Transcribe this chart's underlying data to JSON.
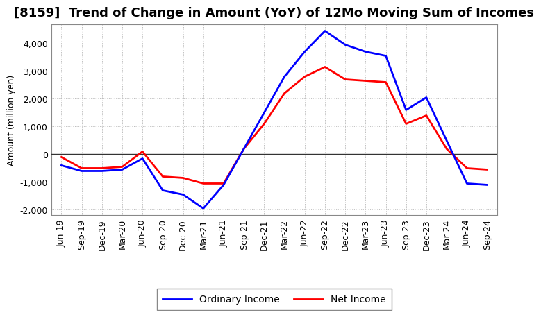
{
  "title": "[8159]  Trend of Change in Amount (YoY) of 12Mo Moving Sum of Incomes",
  "ylabel": "Amount (million yen)",
  "x_labels": [
    "Jun-19",
    "Sep-19",
    "Dec-19",
    "Mar-20",
    "Jun-20",
    "Sep-20",
    "Dec-20",
    "Mar-21",
    "Jun-21",
    "Sep-21",
    "Dec-21",
    "Mar-22",
    "Jun-22",
    "Sep-22",
    "Dec-22",
    "Mar-23",
    "Jun-23",
    "Sep-23",
    "Dec-23",
    "Mar-24",
    "Jun-24",
    "Sep-24"
  ],
  "ordinary_income": [
    -400,
    -600,
    -600,
    -550,
    -150,
    -1300,
    -1450,
    -1950,
    -1100,
    200,
    1500,
    2800,
    3700,
    4450,
    3950,
    3700,
    3550,
    1600,
    2050,
    500,
    -1050,
    -1100
  ],
  "net_income": [
    -100,
    -500,
    -500,
    -450,
    100,
    -800,
    -850,
    -1050,
    -1050,
    200,
    1100,
    2200,
    2800,
    3150,
    2700,
    2650,
    2600,
    1100,
    1400,
    200,
    -500,
    -550
  ],
  "ylim": [
    -2200,
    4700
  ],
  "yticks": [
    -2000,
    -1000,
    0,
    1000,
    2000,
    3000,
    4000
  ],
  "ordinary_color": "#0000ff",
  "net_color": "#ff0000",
  "background_color": "#ffffff",
  "plot_bg_color": "#ffffff",
  "grid_color": "#bbbbbb",
  "zero_line_color": "#333333",
  "legend_ordinary": "Ordinary Income",
  "legend_net": "Net Income",
  "title_fontsize": 13,
  "axis_fontsize": 9,
  "tick_fontsize": 9,
  "line_width": 2.0
}
